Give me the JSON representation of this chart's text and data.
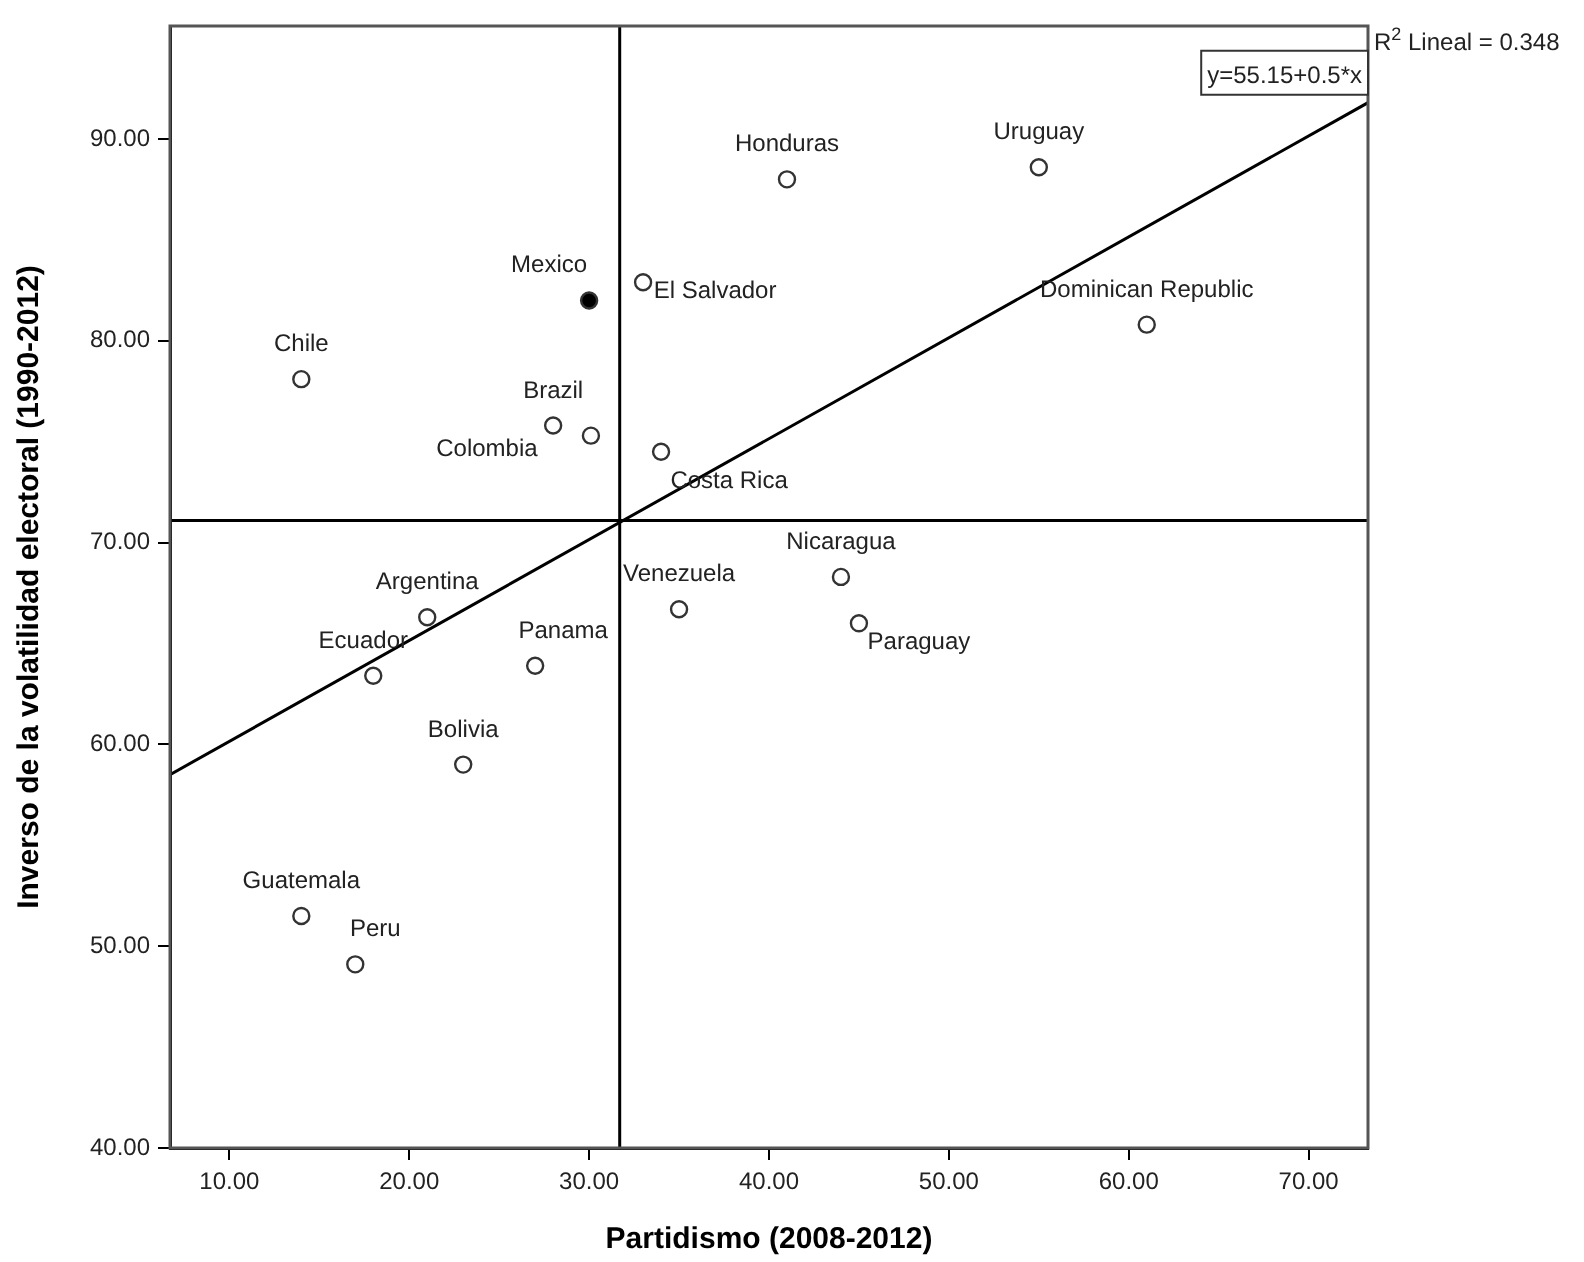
{
  "chart_data": {
    "type": "scatter",
    "xlabel": "Partidismo (2008-2012)",
    "ylabel": "Inverso de la volatilidad electoral (1990-2012)",
    "xlim": [
      6.7,
      73.3
    ],
    "ylim": [
      40,
      95.6
    ],
    "xticks": [
      {
        "value": 10,
        "label": "10.00"
      },
      {
        "value": 20,
        "label": "20.00"
      },
      {
        "value": 30,
        "label": "30.00"
      },
      {
        "value": 40,
        "label": "40.00"
      },
      {
        "value": 50,
        "label": "50.00"
      },
      {
        "value": 60,
        "label": "60.00"
      },
      {
        "value": 70,
        "label": "70.00"
      }
    ],
    "yticks": [
      {
        "value": 40,
        "label": "40.00"
      },
      {
        "value": 50,
        "label": "50.00"
      },
      {
        "value": 60,
        "label": "60.00"
      },
      {
        "value": 70,
        "label": "70.00"
      },
      {
        "value": 80,
        "label": "80.00"
      },
      {
        "value": 90,
        "label": "90.00"
      }
    ],
    "grid": false,
    "legend": false,
    "series": [
      {
        "type": "scatter",
        "marker": "circle",
        "color": "#333333",
        "colors": [
          "#ffffff",
          "#000000",
          "#ffffff",
          "#ffffff",
          "#ffffff",
          "#ffffff",
          "#ffffff",
          "#ffffff",
          "#ffffff",
          "#ffffff",
          "#ffffff",
          "#ffffff",
          "#ffffff",
          "#ffffff",
          "#ffffff",
          "#ffffff",
          "#ffffff",
          "#ffffff"
        ],
        "x": [
          14,
          30,
          33,
          28,
          30.1,
          34,
          41,
          55,
          61,
          44,
          45,
          35,
          21,
          18,
          27,
          23,
          14,
          17
        ],
        "values": [
          78.1,
          82,
          82.9,
          75.8,
          75.3,
          74.5,
          88,
          88.6,
          80.8,
          68.3,
          66,
          66.7,
          66.3,
          63.4,
          63.9,
          59,
          51.5,
          49.1
        ]
      },
      {
        "type": "line",
        "marker": "none",
        "line_style": "solid",
        "color": "#000000",
        "x": [
          6.7,
          73.3
        ],
        "values": [
          58.5,
          91.8
        ]
      }
    ],
    "ref_lines": [
      {
        "axis": "x",
        "value": 31.7,
        "color": "#000000"
      },
      {
        "axis": "y",
        "value": 71.1,
        "color": "#000000"
      }
    ],
    "annotations": [
      {
        "text": "Chile",
        "x": 14,
        "y": 78.1
      },
      {
        "text": "Mexico",
        "x": 30,
        "y": 82
      },
      {
        "text": "El Salvador",
        "x": 33,
        "y": 82.9
      },
      {
        "text": "Brazil",
        "x": 28,
        "y": 75.8
      },
      {
        "text": "Colombia",
        "x": 30.1,
        "y": 75.3
      },
      {
        "text": "Costa Rica",
        "x": 34,
        "y": 74.5
      },
      {
        "text": "Honduras",
        "x": 41,
        "y": 88
      },
      {
        "text": "Uruguay",
        "x": 55,
        "y": 88.6
      },
      {
        "text": "Dominican Republic",
        "x": 61,
        "y": 80.8
      },
      {
        "text": "Nicaragua",
        "x": 44,
        "y": 68.3
      },
      {
        "text": "Paraguay",
        "x": 45,
        "y": 66
      },
      {
        "text": "Venezuela",
        "x": 35,
        "y": 66.7
      },
      {
        "text": "Argentina",
        "x": 21,
        "y": 66.3
      },
      {
        "text": "Ecuador",
        "x": 18,
        "y": 63.4
      },
      {
        "text": "Panama",
        "x": 27,
        "y": 63.9
      },
      {
        "text": "Bolivia",
        "x": 23,
        "y": 59
      },
      {
        "text": "Guatemala",
        "x": 14,
        "y": 51.5
      },
      {
        "text": "Peru",
        "x": 17,
        "y": 49.1
      },
      {
        "text": "y=55.15+0.5*x",
        "x": 73.3,
        "y": 91.8
      },
      "R$^{2}$ Lineal = 0.348"
    ]
  }
}
